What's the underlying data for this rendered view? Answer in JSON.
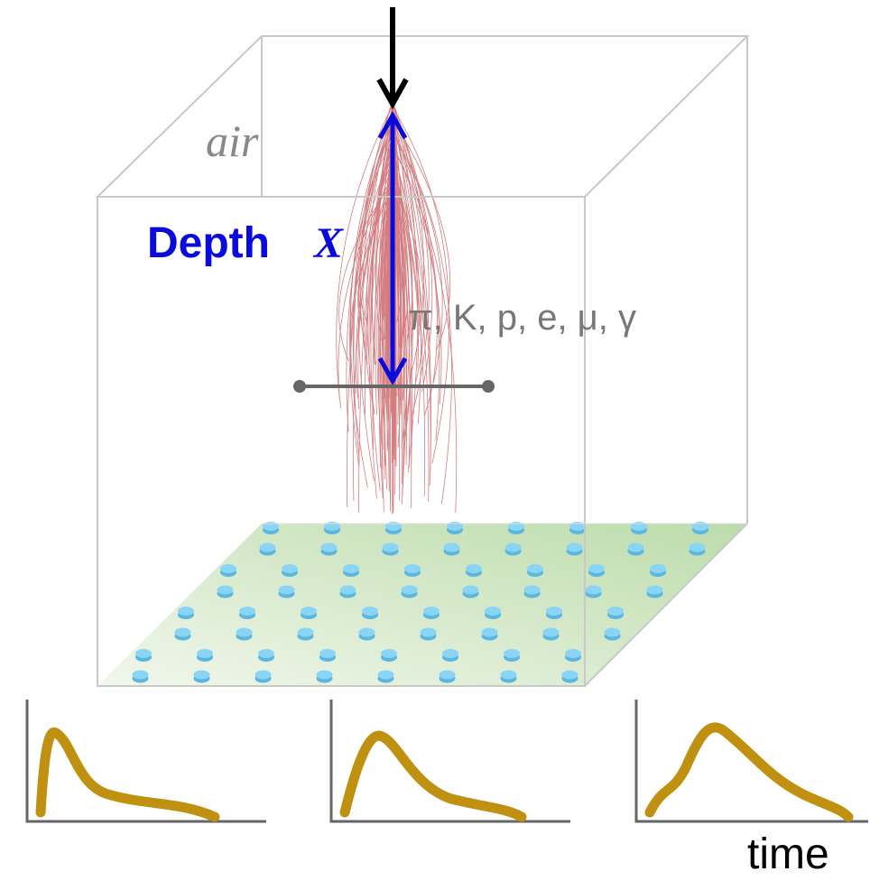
{
  "labels": {
    "air": "air",
    "depth": "Depth",
    "depth_symbol": "X",
    "particles": "π, K, p, e, μ, γ",
    "time": "time"
  }
}
